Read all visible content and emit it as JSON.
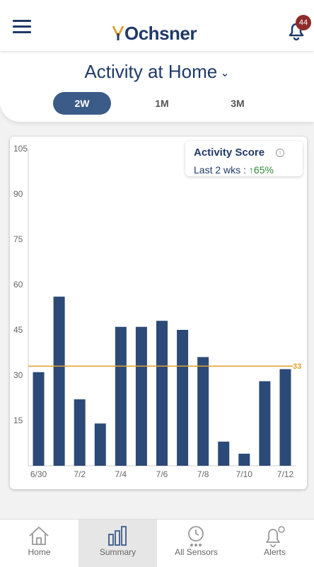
{
  "header": {
    "logo_text": "Ochsner",
    "notification_count": "44"
  },
  "page": {
    "title": "Activity at Home"
  },
  "range_tabs": [
    {
      "label": "2W",
      "active": true
    },
    {
      "label": "1M",
      "active": false
    },
    {
      "label": "3M",
      "active": false
    }
  ],
  "score": {
    "title": "Activity Score",
    "info": "i",
    "period_label": "Last 2 wks :",
    "change": "↑65%"
  },
  "chart_data": {
    "type": "bar",
    "categories": [
      "6/30",
      "7/1",
      "7/2",
      "7/3",
      "7/4",
      "7/5",
      "7/6",
      "7/7",
      "7/8",
      "7/9",
      "7/10",
      "7/11",
      "7/12"
    ],
    "x_tick_labels": [
      "6/30",
      "7/2",
      "7/4",
      "7/6",
      "7/8",
      "7/10",
      "7/12"
    ],
    "values": [
      31,
      56,
      22,
      14,
      46,
      46,
      48,
      45,
      36,
      8,
      4,
      28,
      32
    ],
    "ylim": [
      0,
      105
    ],
    "y_ticks": [
      15,
      30,
      45,
      60,
      75,
      90,
      105
    ],
    "reference_line": {
      "value": 33,
      "label": "33",
      "color": "#e0a030"
    },
    "bar_color": "#2c4a77",
    "grid": false
  },
  "tabbar": [
    {
      "label": "Home",
      "icon": "home-icon",
      "active": false
    },
    {
      "label": "Summary",
      "icon": "bar-chart-icon",
      "active": true
    },
    {
      "label": "All Sensors",
      "icon": "clock-icon",
      "active": false
    },
    {
      "label": "Alerts",
      "icon": "bell-gear-icon",
      "active": false
    }
  ]
}
